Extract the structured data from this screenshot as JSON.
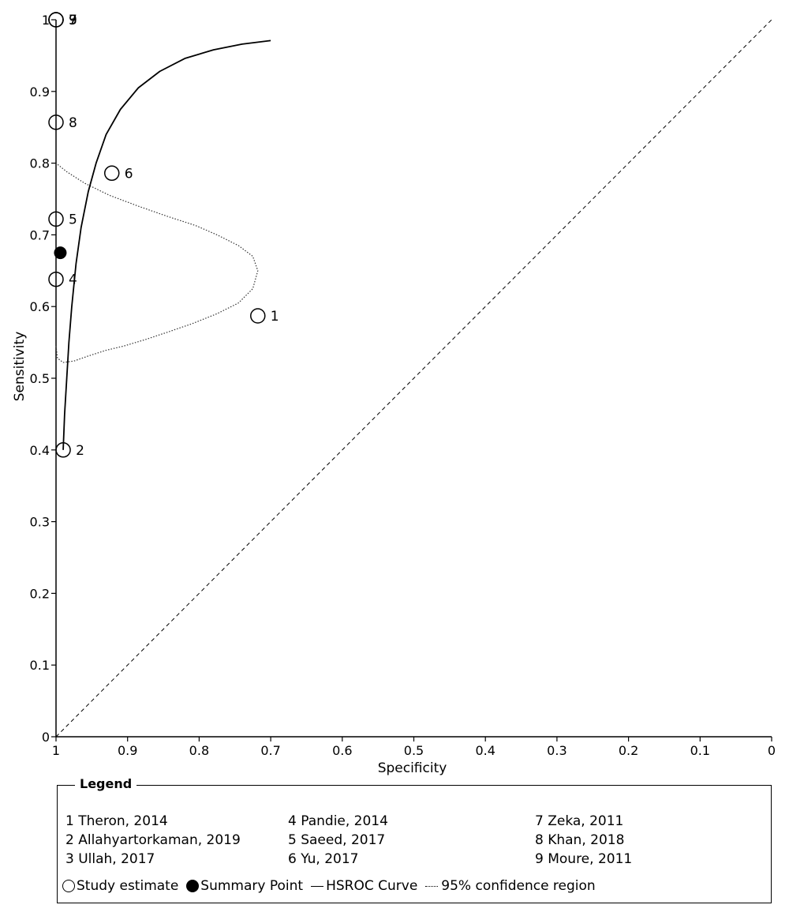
{
  "chart_data": {
    "type": "scatter",
    "xlabel": "Specificity",
    "ylabel": "Sensitivity",
    "xlim": [
      1,
      0
    ],
    "ylim": [
      0,
      1
    ],
    "x_ticks": [
      "1",
      "0.9",
      "0.8",
      "0.7",
      "0.6",
      "0.5",
      "0.4",
      "0.3",
      "0.2",
      "0.1",
      "0"
    ],
    "y_ticks": [
      "0",
      "0.1",
      "0.2",
      "0.3",
      "0.4",
      "0.5",
      "0.6",
      "0.7",
      "0.8",
      "0.9",
      "1"
    ],
    "studies": [
      {
        "id": "1",
        "name": "Theron, 2014",
        "specificity": 0.718,
        "sensitivity": 0.587
      },
      {
        "id": "2",
        "name": "Allahyartorkaman, 2019",
        "specificity": 0.99,
        "sensitivity": 0.4
      },
      {
        "id": "3",
        "name": "Ullah, 2017",
        "specificity": 1.0,
        "sensitivity": 1.0
      },
      {
        "id": "4",
        "name": "Pandie, 2014",
        "specificity": 1.0,
        "sensitivity": 0.638
      },
      {
        "id": "5",
        "name": "Saeed, 2017",
        "specificity": 1.0,
        "sensitivity": 0.722
      },
      {
        "id": "6",
        "name": "Yu, 2017",
        "specificity": 0.922,
        "sensitivity": 0.786
      },
      {
        "id": "7",
        "name": "Zeka, 2011",
        "specificity": 1.0,
        "sensitivity": 1.0
      },
      {
        "id": "8",
        "name": "Khan, 2018",
        "specificity": 1.0,
        "sensitivity": 0.857
      },
      {
        "id": "9",
        "name": "Moure, 2011",
        "specificity": 1.0,
        "sensitivity": 1.0
      }
    ],
    "summary_point": {
      "specificity": 0.994,
      "sensitivity": 0.675
    },
    "hsroc_curve": [
      [
        0.99,
        0.4
      ],
      [
        0.988,
        0.45
      ],
      [
        0.985,
        0.5
      ],
      [
        0.982,
        0.55
      ],
      [
        0.978,
        0.6
      ],
      [
        0.972,
        0.66
      ],
      [
        0.965,
        0.71
      ],
      [
        0.955,
        0.76
      ],
      [
        0.944,
        0.8
      ],
      [
        0.93,
        0.84
      ],
      [
        0.91,
        0.875
      ],
      [
        0.885,
        0.905
      ],
      [
        0.855,
        0.928
      ],
      [
        0.82,
        0.946
      ],
      [
        0.78,
        0.958
      ],
      [
        0.74,
        0.966
      ],
      [
        0.7,
        0.971
      ]
    ],
    "confidence_region": [
      [
        1.0,
        0.545
      ],
      [
        0.998,
        0.528
      ],
      [
        0.99,
        0.522
      ],
      [
        0.975,
        0.524
      ],
      [
        0.955,
        0.531
      ],
      [
        0.93,
        0.539
      ],
      [
        0.905,
        0.545
      ],
      [
        0.875,
        0.554
      ],
      [
        0.845,
        0.564
      ],
      [
        0.81,
        0.576
      ],
      [
        0.775,
        0.59
      ],
      [
        0.745,
        0.605
      ],
      [
        0.725,
        0.625
      ],
      [
        0.718,
        0.65
      ],
      [
        0.725,
        0.67
      ],
      [
        0.745,
        0.685
      ],
      [
        0.775,
        0.7
      ],
      [
        0.805,
        0.713
      ],
      [
        0.845,
        0.726
      ],
      [
        0.885,
        0.74
      ],
      [
        0.925,
        0.755
      ],
      [
        0.96,
        0.772
      ],
      [
        0.985,
        0.788
      ],
      [
        1.0,
        0.8
      ]
    ],
    "reference_line": [
      [
        1,
        0
      ],
      [
        0,
        1
      ]
    ]
  },
  "legend": {
    "title": "Legend",
    "entries": [
      "1 Theron, 2014",
      "2 Allahyartorkaman, 2019",
      "3 Ullah, 2017",
      "4 Pandie, 2014",
      "5 Saeed, 2017",
      "6 Yu, 2017",
      "7 Zeka, 2011",
      "8 Khan, 2018",
      "9 Moure, 2011"
    ],
    "study_estimate": "Study estimate",
    "summary_point": "Summary Point",
    "hsroc_curve": "HSROC Curve",
    "confidence_region": "95% confidence region"
  }
}
